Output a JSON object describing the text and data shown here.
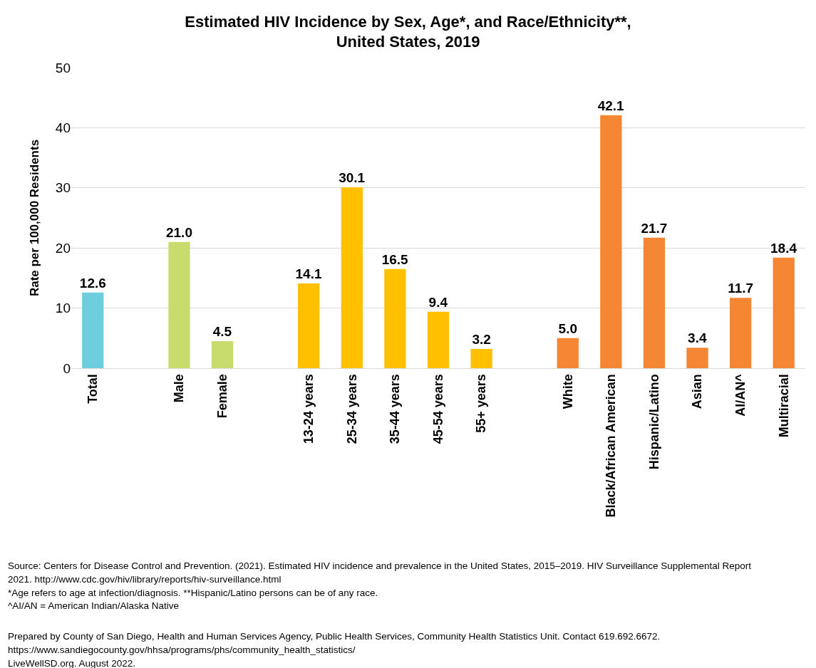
{
  "chart_data": {
    "type": "bar",
    "title": "Estimated HIV Incidence by Sex, Age*, and Race/Ethnicity**,\nUnited States, 2019",
    "ylabel": "Rate per 100,000 Residents",
    "categories": [
      "Total",
      null,
      "Male",
      "Female",
      null,
      "13-24 years",
      "25-34 years",
      "35-44 years",
      "45-54 years",
      "55+ years",
      null,
      "White",
      "Black/African American",
      "Hispanic/Latino",
      "Asian",
      "AI/AN^",
      "Multiracial"
    ],
    "values": [
      12.6,
      null,
      21.0,
      4.5,
      null,
      14.1,
      30.1,
      16.5,
      9.4,
      3.2,
      null,
      5.0,
      42.1,
      21.7,
      3.4,
      11.7,
      18.4
    ],
    "value_labels": [
      "12.6",
      null,
      "21.0",
      "4.5",
      null,
      "14.1",
      "30.1",
      "16.5",
      "9.4",
      "3.2",
      null,
      "5.0",
      "42.1",
      "21.7",
      "3.4",
      "11.7",
      "18.4"
    ],
    "colors": [
      "#6fcedd",
      null,
      "#c8dc6e",
      "#c8dc6e",
      null,
      "#ffc000",
      "#ffc000",
      "#ffc000",
      "#ffc000",
      "#ffc000",
      null,
      "#f58634",
      "#f58634",
      "#f58634",
      "#f58634",
      "#f58634",
      "#f58634"
    ],
    "ylim": [
      0,
      50
    ],
    "yticks": [
      0,
      10,
      20,
      30,
      40,
      50
    ],
    "grid": "y",
    "annotations": [
      "Source: Centers for Disease Control and Prevention. (2021). Estimated HIV incidence and prevalence in the United States, 2015–2019. HIV Surveillance Supplemental Report",
      "2021. http://www.cdc.gov/hiv/library/reports/hiv-surveillance.html",
      "*Age refers to age at infection/diagnosis. **Hispanic/Latino persons can be of any race.",
      "^AI/AN = American Indian/Alaska Native",
      "Prepared by County of San Diego, Health and Human Services Agency, Public Health Services, Community Health Statistics Unit. Contact 619.692.6672.",
      "https://www.sandiegocounty.gov/hhsa/programs/phs/community_health_statistics/",
      "LiveWellSD.org. August 2022."
    ]
  }
}
